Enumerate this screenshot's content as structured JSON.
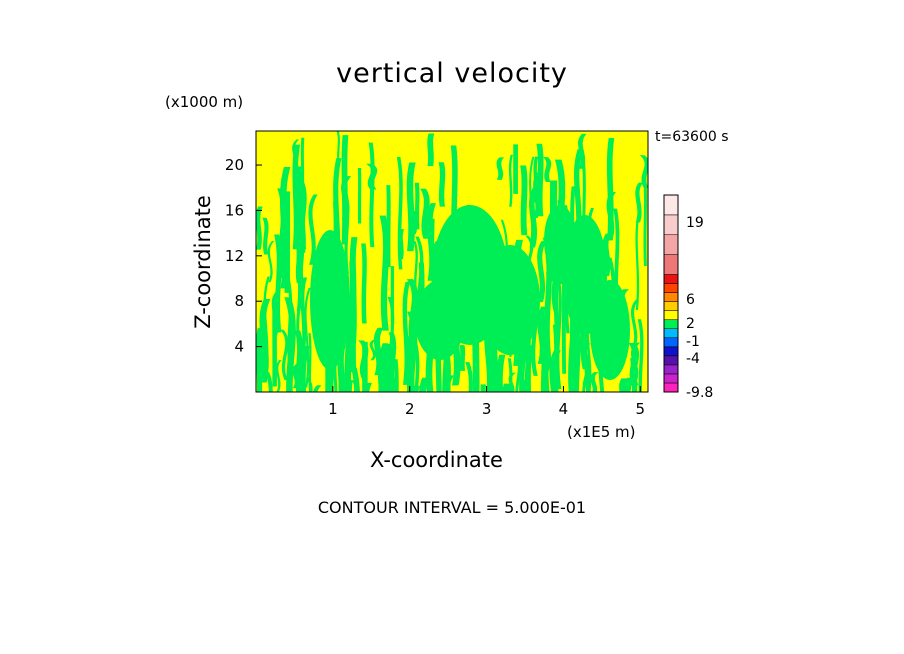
{
  "chart_data": {
    "type": "heatmap",
    "title": "vertical velocity",
    "xlabel": "X-coordinate",
    "ylabel": "Z-coordinate",
    "x_unit": "(x1E5 m)",
    "y_unit": "(x1000 m)",
    "time_label": "t=63600 s",
    "footer": "CONTOUR INTERVAL = 5.000E-01",
    "xlim": [
      0,
      5.1
    ],
    "ylim": [
      0,
      23
    ],
    "x_ticks": [
      "1",
      "2",
      "3",
      "4",
      "5"
    ],
    "y_ticks": [
      "4",
      "8",
      "12",
      "16",
      "20"
    ],
    "colorbar_labels": [
      "19",
      "6",
      "2",
      "-1",
      "-4",
      "-9.8"
    ],
    "colorbar_range": [
      -9.8,
      19
    ],
    "dominant_colors": {
      "positive_small": "#ffff00",
      "negative_small": "#00ee55"
    },
    "colorbar_colors": [
      "#ff22bb",
      "#cc22cc",
      "#9922cc",
      "#5511aa",
      "#1111cc",
      "#0066ff",
      "#00bbff",
      "#00ee55",
      "#ffff00",
      "#ffcc00",
      "#ff8800",
      "#ff4400",
      "#ee1111",
      "#ee7777",
      "#f4a5a5",
      "#f8cccc",
      "#fde8e8"
    ]
  }
}
